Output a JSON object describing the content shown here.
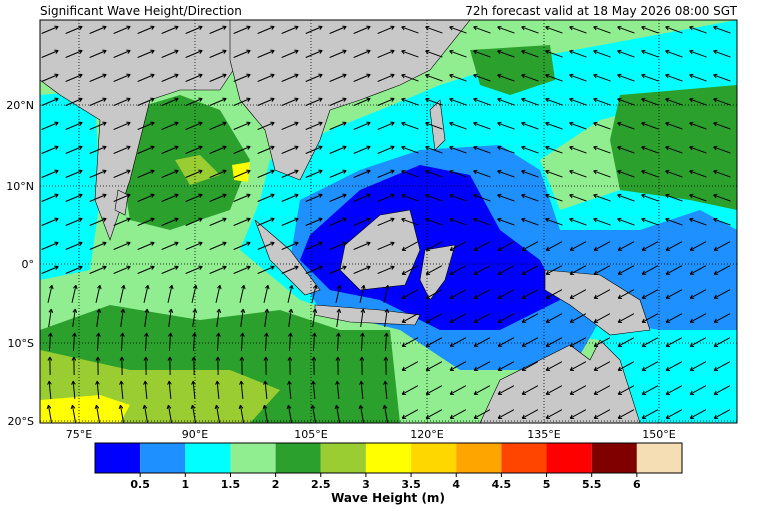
{
  "header": {
    "title": "Significant Wave Height/Direction",
    "valid": "72h forecast valid at 18 May 2026 08:00 SGT"
  },
  "map": {
    "lat_labels": [
      "20°N",
      "10°N",
      "0°",
      "10°S",
      "20°S"
    ],
    "lon_labels": [
      "75°E",
      "90°E",
      "105°E",
      "120°E",
      "135°E",
      "150°E"
    ]
  },
  "colorbar": {
    "ticks": [
      0.5,
      1,
      1.5,
      2,
      2.5,
      3,
      3.5,
      4,
      4.5,
      5,
      5.5,
      6
    ],
    "colors": [
      "#0000ff",
      "#1e90ff",
      "#00ffff",
      "#90ee90",
      "#2ca02c",
      "#9acd32",
      "#ffff00",
      "#ffd700",
      "#ffa500",
      "#ff4500",
      "#ff0000",
      "#800000",
      "#f5deb3"
    ],
    "title": "Wave Height (m)"
  }
}
